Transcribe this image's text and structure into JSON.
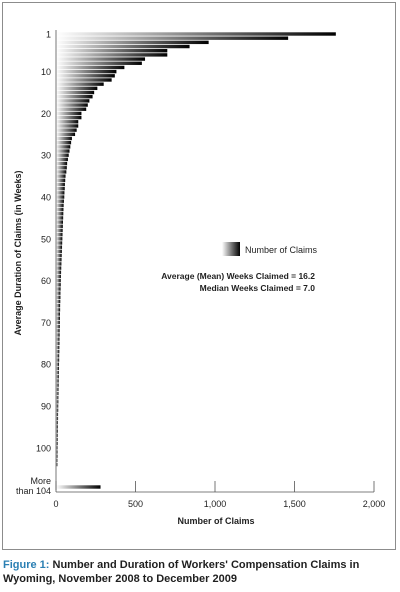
{
  "chart_data": {
    "type": "bar",
    "orientation": "horizontal",
    "ylabel": "Average Duration of Claims (in Weeks)",
    "xlabel": "Number of Claims",
    "xlim": [
      0,
      2000
    ],
    "xticks": [
      "0",
      "500",
      "1,000",
      "1,500",
      "2,000"
    ],
    "yticks": [
      "1",
      "10",
      "20",
      "30",
      "40",
      "50",
      "60",
      "70",
      "80",
      "90",
      "100"
    ],
    "last_category_label": [
      "More",
      "than 104"
    ],
    "legend": {
      "label": "Number of Claims",
      "position": "right-middle"
    },
    "annotations": [
      "Average (Mean) Weeks Claimed = 16.2",
      "Median Weeks Claimed = 7.0"
    ],
    "bar_gradient": {
      "light": "#ffffff",
      "dark": "#000000"
    },
    "categories": [
      "1",
      "2",
      "3",
      "4",
      "5",
      "6",
      "7",
      "8",
      "9",
      "10",
      "11",
      "12",
      "13",
      "14",
      "15",
      "16",
      "17",
      "18",
      "19",
      "20",
      "21",
      "22",
      "23",
      "24",
      "25",
      "26",
      "27",
      "28",
      "29",
      "30",
      "31",
      "32",
      "33",
      "34",
      "35",
      "36",
      "37",
      "38",
      "39",
      "40",
      "41",
      "42",
      "43",
      "44",
      "45",
      "46",
      "47",
      "48",
      "49",
      "50",
      "51",
      "52",
      "53",
      "54",
      "55",
      "56",
      "57",
      "58",
      "59",
      "60",
      "61",
      "62",
      "63",
      "64",
      "65",
      "66",
      "67",
      "68",
      "69",
      "70",
      "71",
      "72",
      "73",
      "74",
      "75",
      "76",
      "77",
      "78",
      "79",
      "80",
      "81",
      "82",
      "83",
      "84",
      "85",
      "86",
      "87",
      "88",
      "89",
      "90",
      "91",
      "92",
      "93",
      "94",
      "95",
      "96",
      "97",
      "98",
      "99",
      "100",
      "101",
      "102",
      "103",
      "104",
      "More than 104"
    ],
    "values": [
      1760,
      1460,
      960,
      840,
      700,
      700,
      560,
      540,
      430,
      380,
      370,
      350,
      300,
      260,
      240,
      230,
      210,
      200,
      190,
      160,
      160,
      140,
      140,
      130,
      120,
      100,
      95,
      90,
      85,
      80,
      75,
      70,
      68,
      65,
      60,
      58,
      56,
      55,
      53,
      52,
      50,
      48,
      47,
      46,
      45,
      44,
      43,
      42,
      41,
      40,
      39,
      38,
      37,
      36,
      35,
      34,
      33,
      32,
      31,
      30,
      30,
      29,
      28,
      28,
      27,
      26,
      26,
      25,
      25,
      24,
      24,
      23,
      23,
      22,
      22,
      21,
      21,
      20,
      20,
      19,
      19,
      18,
      18,
      17,
      17,
      16,
      16,
      15,
      15,
      14,
      14,
      13,
      13,
      12,
      12,
      12,
      11,
      11,
      11,
      10,
      10,
      10,
      9,
      9,
      280
    ]
  },
  "caption": {
    "label": "Figure 1:",
    "text": "Number and Duration of Workers' Compensation Claims in Wyoming, November 2008 to December 2009"
  }
}
